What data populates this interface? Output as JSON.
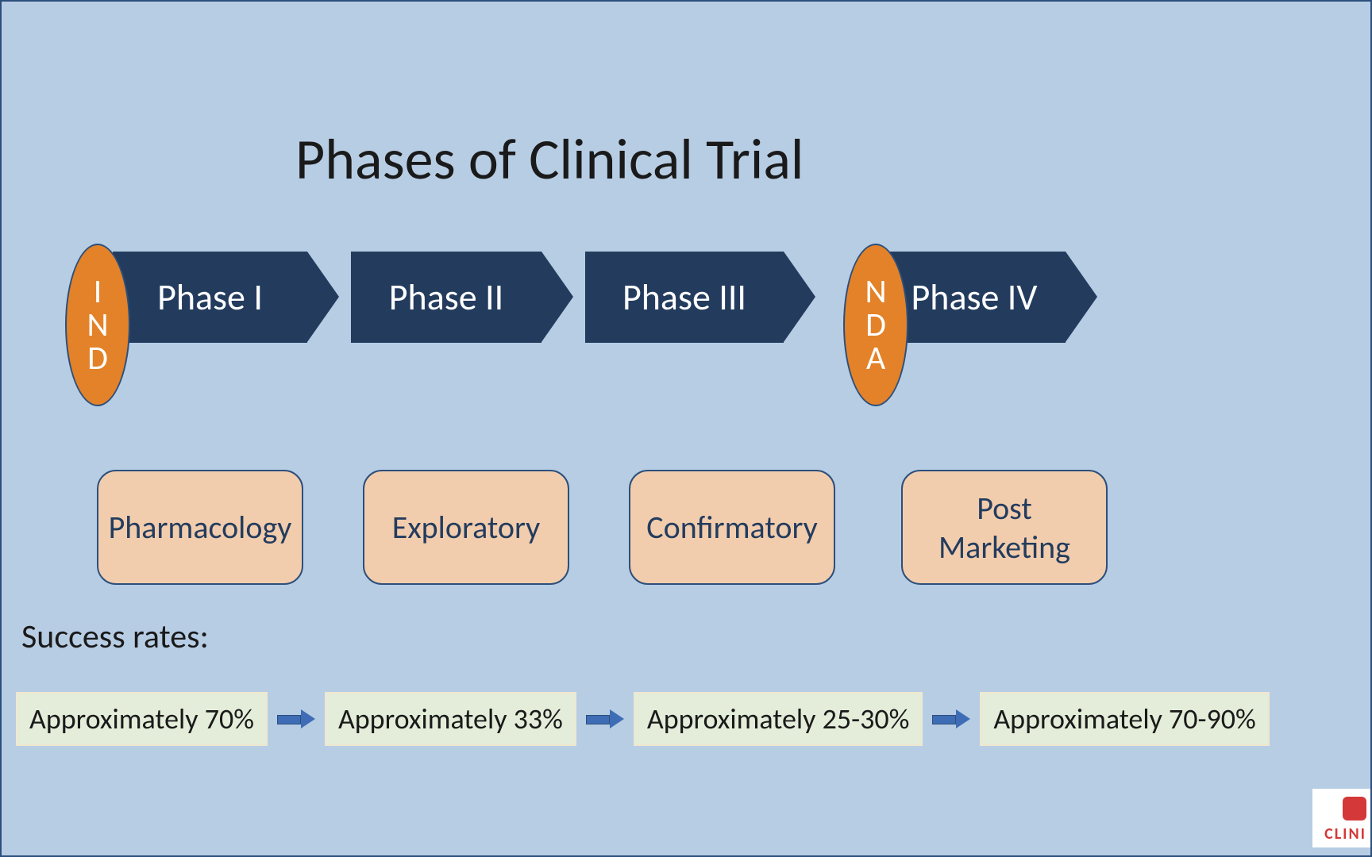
{
  "title": "Phases of Clinical Trial",
  "gates": {
    "ind": [
      "I",
      "N",
      "D"
    ],
    "nda": [
      "N",
      "D",
      "A"
    ]
  },
  "phases": [
    {
      "label": "Phase I"
    },
    {
      "label": "Phase II"
    },
    {
      "label": "Phase III"
    },
    {
      "label": "Phase IV"
    }
  ],
  "types": [
    {
      "label": "Pharmacology"
    },
    {
      "label": "Exploratory"
    },
    {
      "label": "Confirmatory"
    },
    {
      "label": "Post Marketing"
    }
  ],
  "success_label": "Success rates:",
  "success_rates": [
    "Approximately 70%",
    "Approximately 33%",
    "Approximately 25-30%",
    "Approximately 70-90%"
  ],
  "logo_text": "CLINI",
  "styling": {
    "background_color": "#b7cde4",
    "border_color": "#2c4f7c",
    "title_fontsize": 72,
    "title_color": "#1a1a1a",
    "chevron_bg": "#233c5e",
    "chevron_text_color": "#ffffff",
    "chevron_fontsize": 46,
    "chevron_height": 115,
    "oval_bg": "#e38228",
    "oval_border": "#2c4f7c",
    "oval_text_color": "#ffffff",
    "oval_fontsize": 42,
    "oval_width": 82,
    "oval_height": 205,
    "type_box_bg": "#f2cdad",
    "type_box_border": "#2c4f7c",
    "type_box_text_color": "#233c5e",
    "type_box_fontsize": 40,
    "type_box_radius": 24,
    "type_box_width": 260,
    "type_box_height": 145,
    "success_label_fontsize": 42,
    "success_box_bg": "#e3edd9",
    "success_box_border": "#f0e7d0",
    "success_box_fontsize": 36,
    "arrow_color": "#3f6db5",
    "logo_color": "#d43838",
    "logo_bg": "#ffffff"
  }
}
